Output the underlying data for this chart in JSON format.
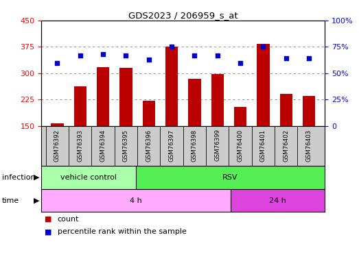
{
  "title": "GDS2023 / 206959_s_at",
  "samples": [
    "GSM76392",
    "GSM76393",
    "GSM76394",
    "GSM76395",
    "GSM76396",
    "GSM76397",
    "GSM76398",
    "GSM76399",
    "GSM76400",
    "GSM76401",
    "GSM76402",
    "GSM76403"
  ],
  "counts": [
    157,
    263,
    318,
    315,
    222,
    375,
    285,
    297,
    205,
    383,
    242,
    235
  ],
  "percentile_ranks": [
    60,
    67,
    68,
    67,
    63,
    75,
    67,
    67,
    60,
    75,
    64,
    64
  ],
  "ylim_left": [
    150,
    450
  ],
  "ylim_right": [
    0,
    100
  ],
  "yticks_left": [
    150,
    225,
    300,
    375,
    450
  ],
  "yticks_right": [
    0,
    25,
    50,
    75,
    100
  ],
  "bar_color": "#bb0000",
  "dot_color": "#0000cc",
  "infection_vc_color": "#aaffaa",
  "infection_rsv_color": "#55ee55",
  "time_4h_color": "#ffaaff",
  "time_24h_color": "#dd44dd",
  "grid_color": "#888888",
  "plot_bg_color": "#ffffff",
  "tick_area_bg": "#cccccc",
  "left_spine_color": "#000000",
  "right_spine_color": "#0000bb"
}
